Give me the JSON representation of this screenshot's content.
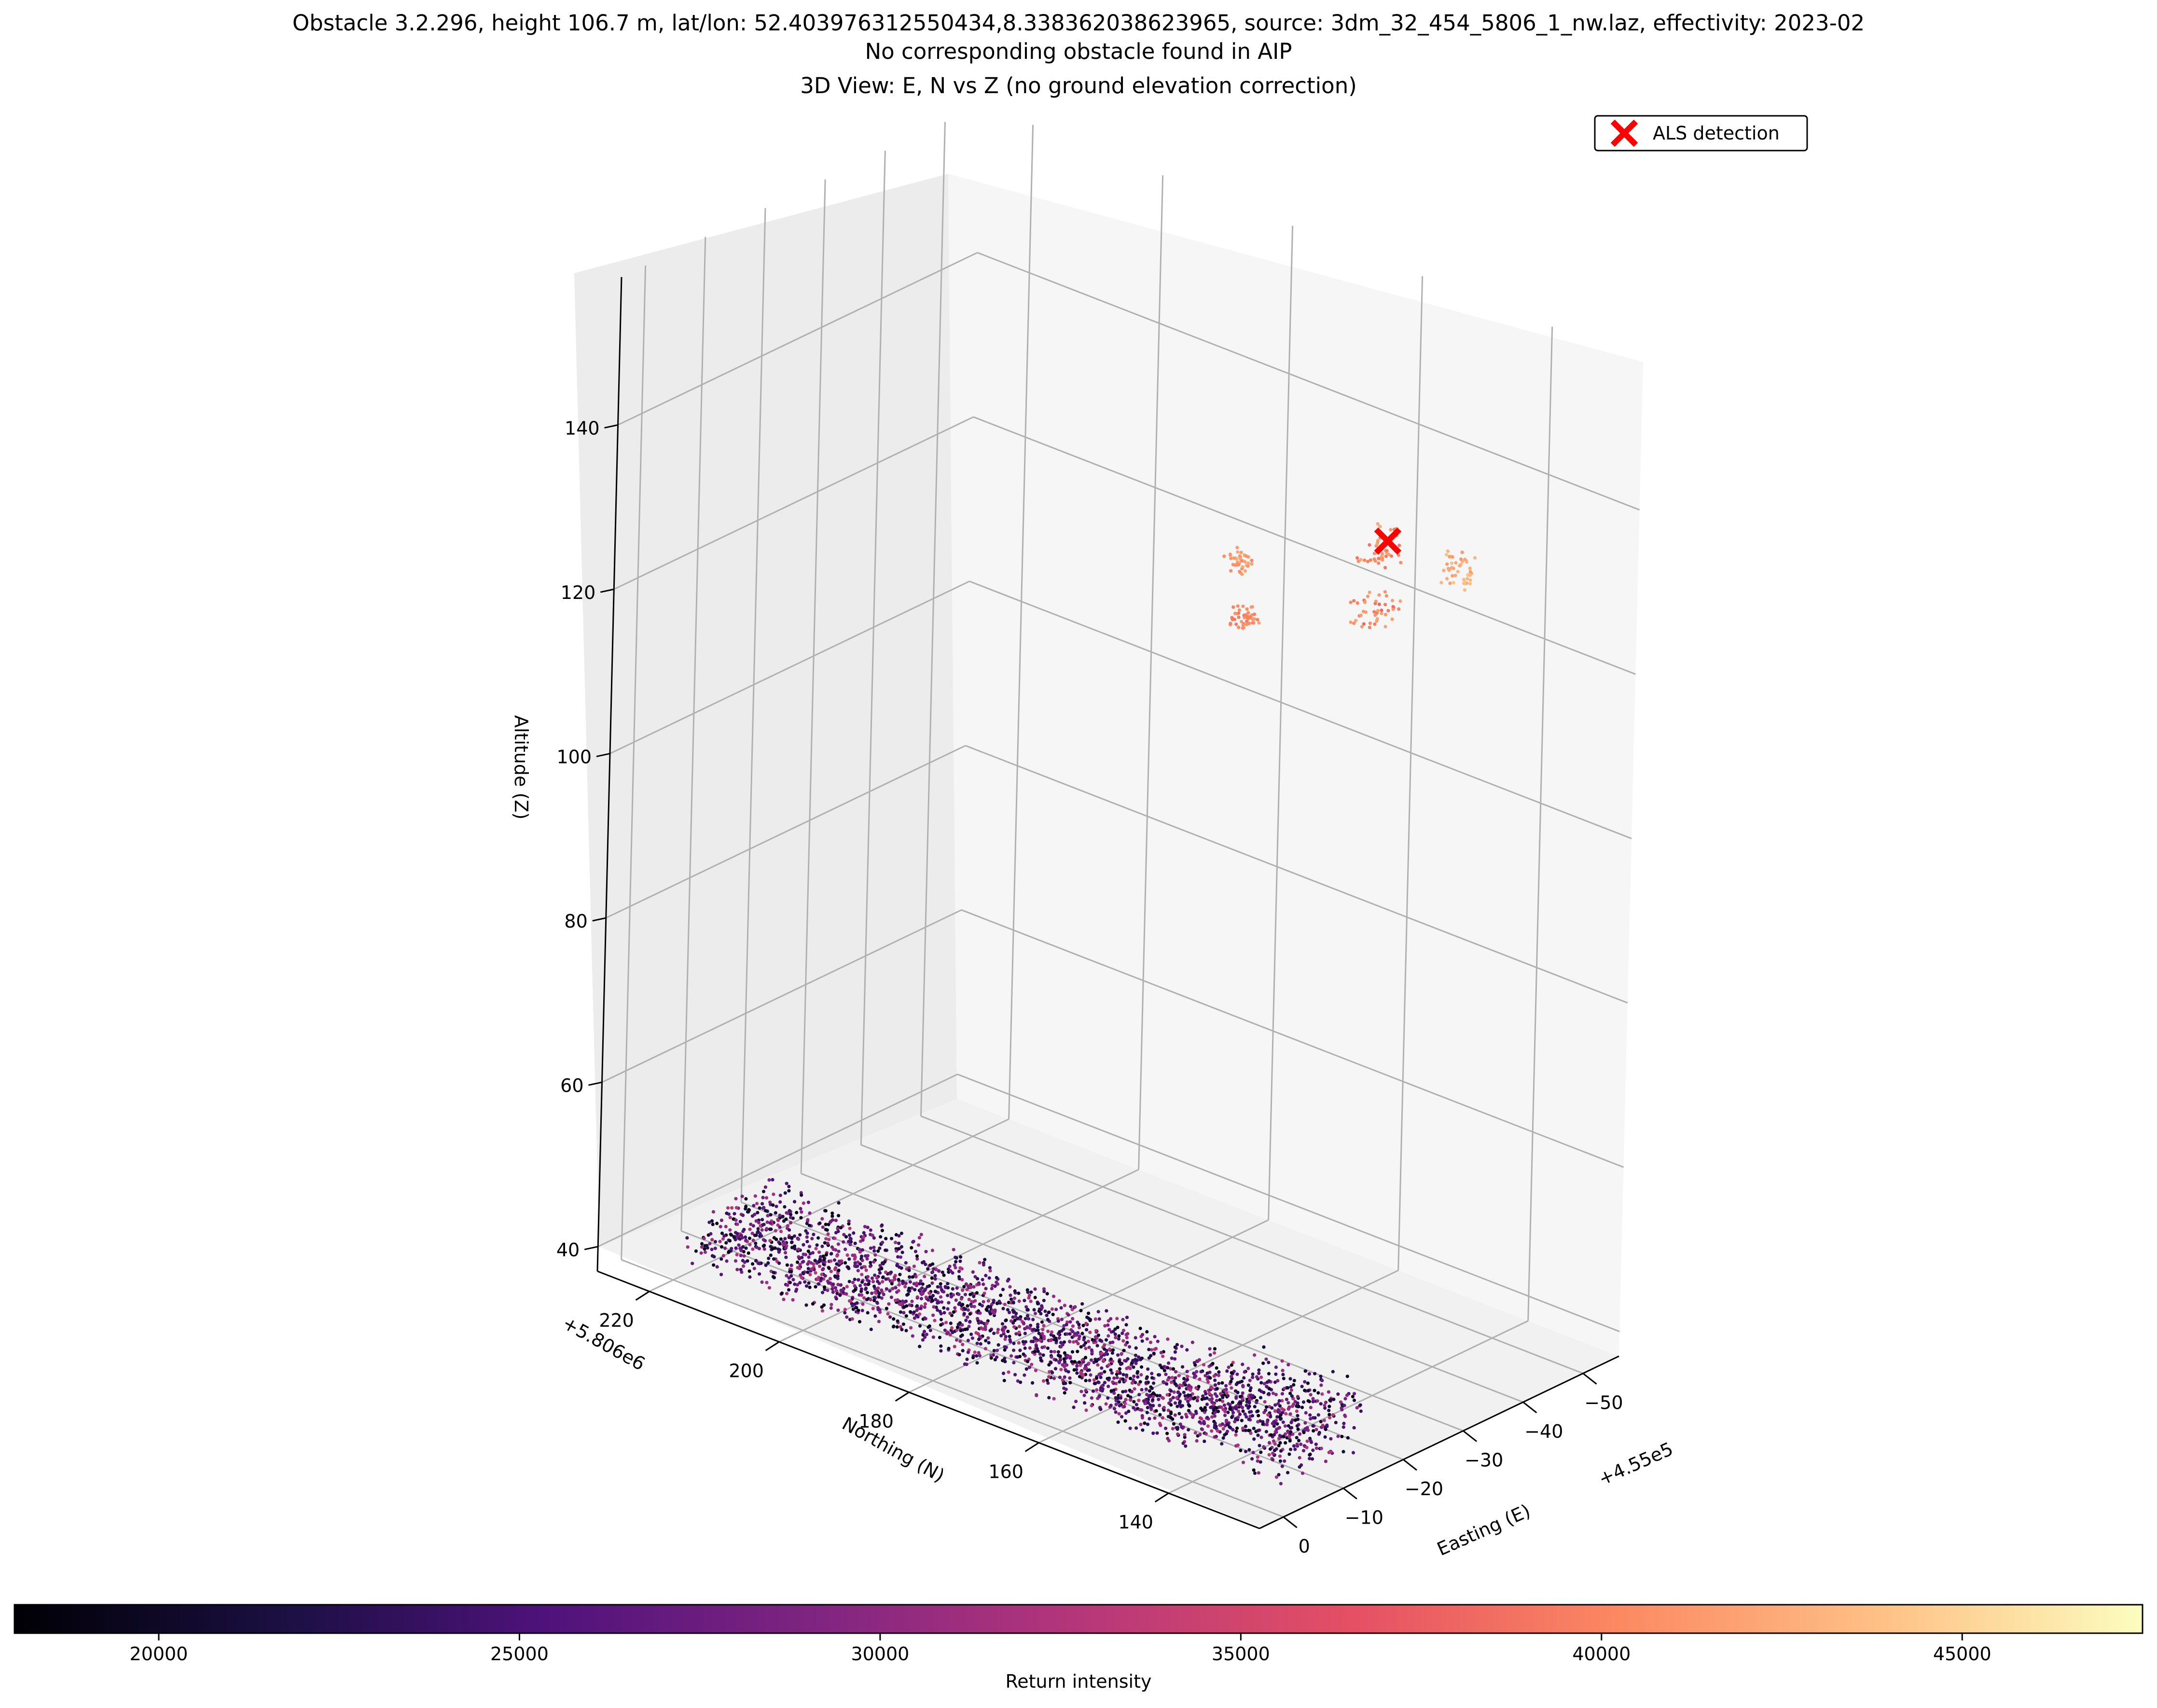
{
  "chart_data": {
    "type": "scatter",
    "projection": "3d",
    "title_lines": [
      "Obstacle 3.2.296, height 106.7 m, lat/lon: 52.403976312550434,8.338362038623965, source: 3dm_32_454_5806_1_nw.laz, effectivity: 2023-02",
      "No corresponding obstacle found in AIP",
      "3D View: E, N vs Z (no ground elevation correction)"
    ],
    "axes": {
      "x": {
        "label": "Easting (E)",
        "offset": "+4.55e5",
        "ticks": [
          "0",
          "−10",
          "−20",
          "−30",
          "−40",
          "−50"
        ],
        "range": [
          -56,
          4
        ]
      },
      "y": {
        "label": "Northing (N)",
        "offset": "+5.806e6",
        "ticks": [
          "140",
          "160",
          "180",
          "200",
          "220"
        ],
        "range": [
          126,
          228
        ]
      },
      "z": {
        "label": "Altitude (Z)",
        "ticks": [
          "40",
          "60",
          "80",
          "100",
          "120",
          "140"
        ],
        "range": [
          37,
          158
        ]
      }
    },
    "grid": true,
    "legend": {
      "position": "top-right",
      "entries": [
        {
          "label": "ALS detection",
          "marker": "x",
          "color": "#ff0000"
        }
      ]
    },
    "detection": {
      "E": -28,
      "N": 139,
      "Z": 142
    },
    "colorbar": {
      "label": "Return intensity",
      "ticks": [
        "20000",
        "25000",
        "30000",
        "35000",
        "40000",
        "45000"
      ],
      "range": [
        18000,
        47500
      ],
      "colormap": "magma",
      "orientation": "horizontal"
    },
    "point_clusters": [
      {
        "name": "ground-band",
        "N": [
          130,
          222
        ],
        "E": [
          -18,
          -4
        ],
        "Z": [
          37,
          48
        ],
        "intensity": [
          18500,
          33000
        ]
      },
      {
        "name": "obstacle-top-left",
        "N": [
          136,
          140
        ],
        "E": [
          -40,
          -38
        ],
        "Z": [
          133,
          137
        ],
        "intensity": [
          41000,
          44000
        ]
      },
      {
        "name": "obstacle-top-center",
        "N": [
          138,
          142
        ],
        "E": [
          -30,
          -26
        ],
        "Z": [
          139,
          143
        ],
        "intensity": [
          39000,
          43000
        ]
      },
      {
        "name": "obstacle-mid-center",
        "N": [
          138,
          142
        ],
        "E": [
          -30,
          -25
        ],
        "Z": [
          132,
          135
        ],
        "intensity": [
          38000,
          42000
        ]
      },
      {
        "name": "obstacle-right-high",
        "N": [
          148,
          151
        ],
        "E": [
          -16,
          -13
        ],
        "Z": [
          140,
          142
        ],
        "intensity": [
          40000,
          43000
        ]
      },
      {
        "name": "obstacle-right-mid",
        "N": [
          148,
          151
        ],
        "E": [
          -17,
          -14
        ],
        "Z": [
          133,
          135
        ],
        "intensity": [
          39000,
          42000
        ]
      }
    ]
  }
}
